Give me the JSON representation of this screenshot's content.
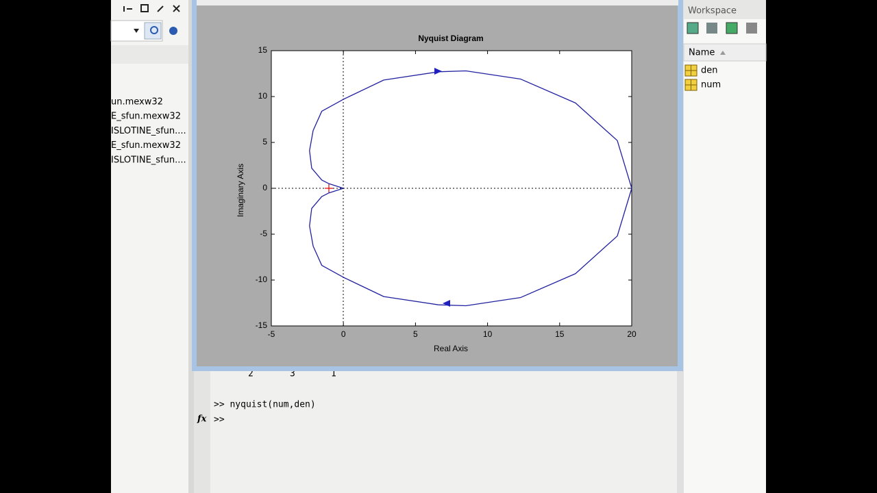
{
  "file_list": [
    "un.mexw32",
    "E_sfun.mexw32",
    "ISLOTINE_sfun....",
    "E_sfun.mexw32",
    "ISLOTINE_sfun...."
  ],
  "command_window": {
    "partial_output": [
      "2",
      "3",
      "1"
    ],
    "command": ">> nyquist(num,den)",
    "fx": "fx",
    "prompt": ">>"
  },
  "workspace": {
    "title": "Workspace",
    "column": "Name",
    "variables": [
      "den",
      "num"
    ]
  },
  "chart_data": {
    "type": "line",
    "title": "Nyquist Diagram",
    "x_label": "Real Axis",
    "y_label": "Imaginary Axis",
    "x": [
      0,
      -1,
      -1.5,
      -2.2,
      -2.35,
      -2.1,
      -1.5,
      0,
      2.8,
      6.6,
      8.5,
      12.3,
      16.1,
      19,
      20,
      19,
      16.1,
      12.3,
      8.5,
      6.6,
      2.8,
      0,
      -1.5,
      -2.1,
      -2.35,
      -2.2,
      -1.5,
      -1,
      0
    ],
    "values": [
      0,
      0.5,
      0.9,
      2.2,
      4.1,
      6.3,
      8.4,
      9.7,
      11.8,
      12.7,
      12.8,
      11.9,
      9.3,
      5.2,
      0,
      -5.2,
      -9.3,
      -11.9,
      -12.8,
      -12.7,
      -11.8,
      -9.7,
      -8.4,
      -6.3,
      -4.1,
      -2.2,
      -0.9,
      -0.5,
      0
    ],
    "color": "#2020a0",
    "xlim": [
      -5,
      20
    ],
    "ylim": [
      -15,
      15
    ],
    "xticks": [
      -5,
      0,
      5,
      10,
      15,
      20
    ],
    "yticks": [
      -15,
      -10,
      -5,
      0,
      5,
      10,
      15
    ]
  }
}
